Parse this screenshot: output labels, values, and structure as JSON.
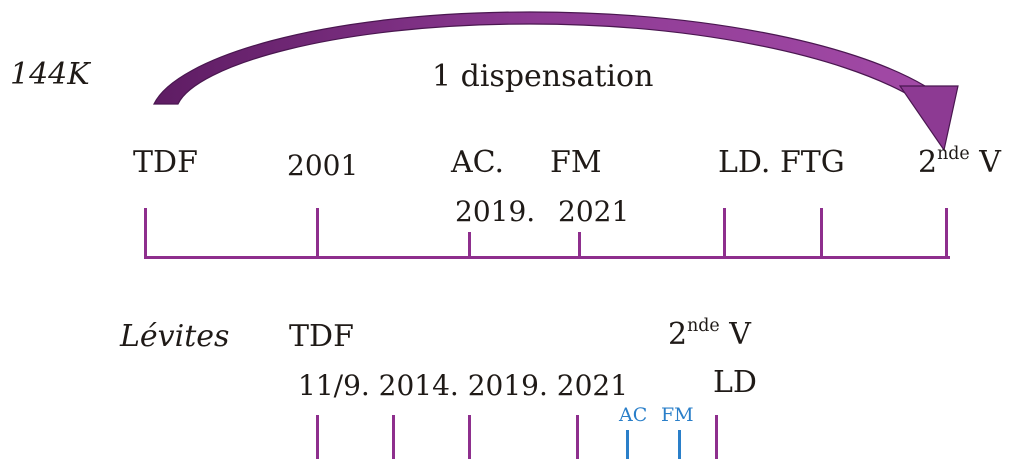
{
  "top": {
    "series_label": "144K",
    "arc_label": "1 dispensation",
    "labels": {
      "tdf": "TDF",
      "y2001": "2001",
      "ac": "AC.",
      "fm": "FM",
      "y2019": "2019.",
      "y2021": "2021",
      "ld_ftg": "LD. FTG",
      "second_v_num": "2",
      "second_v_sup": "nde",
      "second_v_letter": "V"
    }
  },
  "bottom": {
    "series_label": "Lévites",
    "labels": {
      "tdf": "TDF",
      "second_v_num": "2",
      "second_v_sup": "nde",
      "second_v_letter": "V",
      "dates": "11/9. 2014. 2019. 2021",
      "ld": "LD",
      "ac": "AC",
      "fm": "FM"
    }
  },
  "colors": {
    "timeline": "#8e2f8d",
    "arrow": "#7b2a7f",
    "arrow_outline": "#4a1750",
    "accent_blue": "#2a7fc9",
    "text": "#1f1a17"
  }
}
